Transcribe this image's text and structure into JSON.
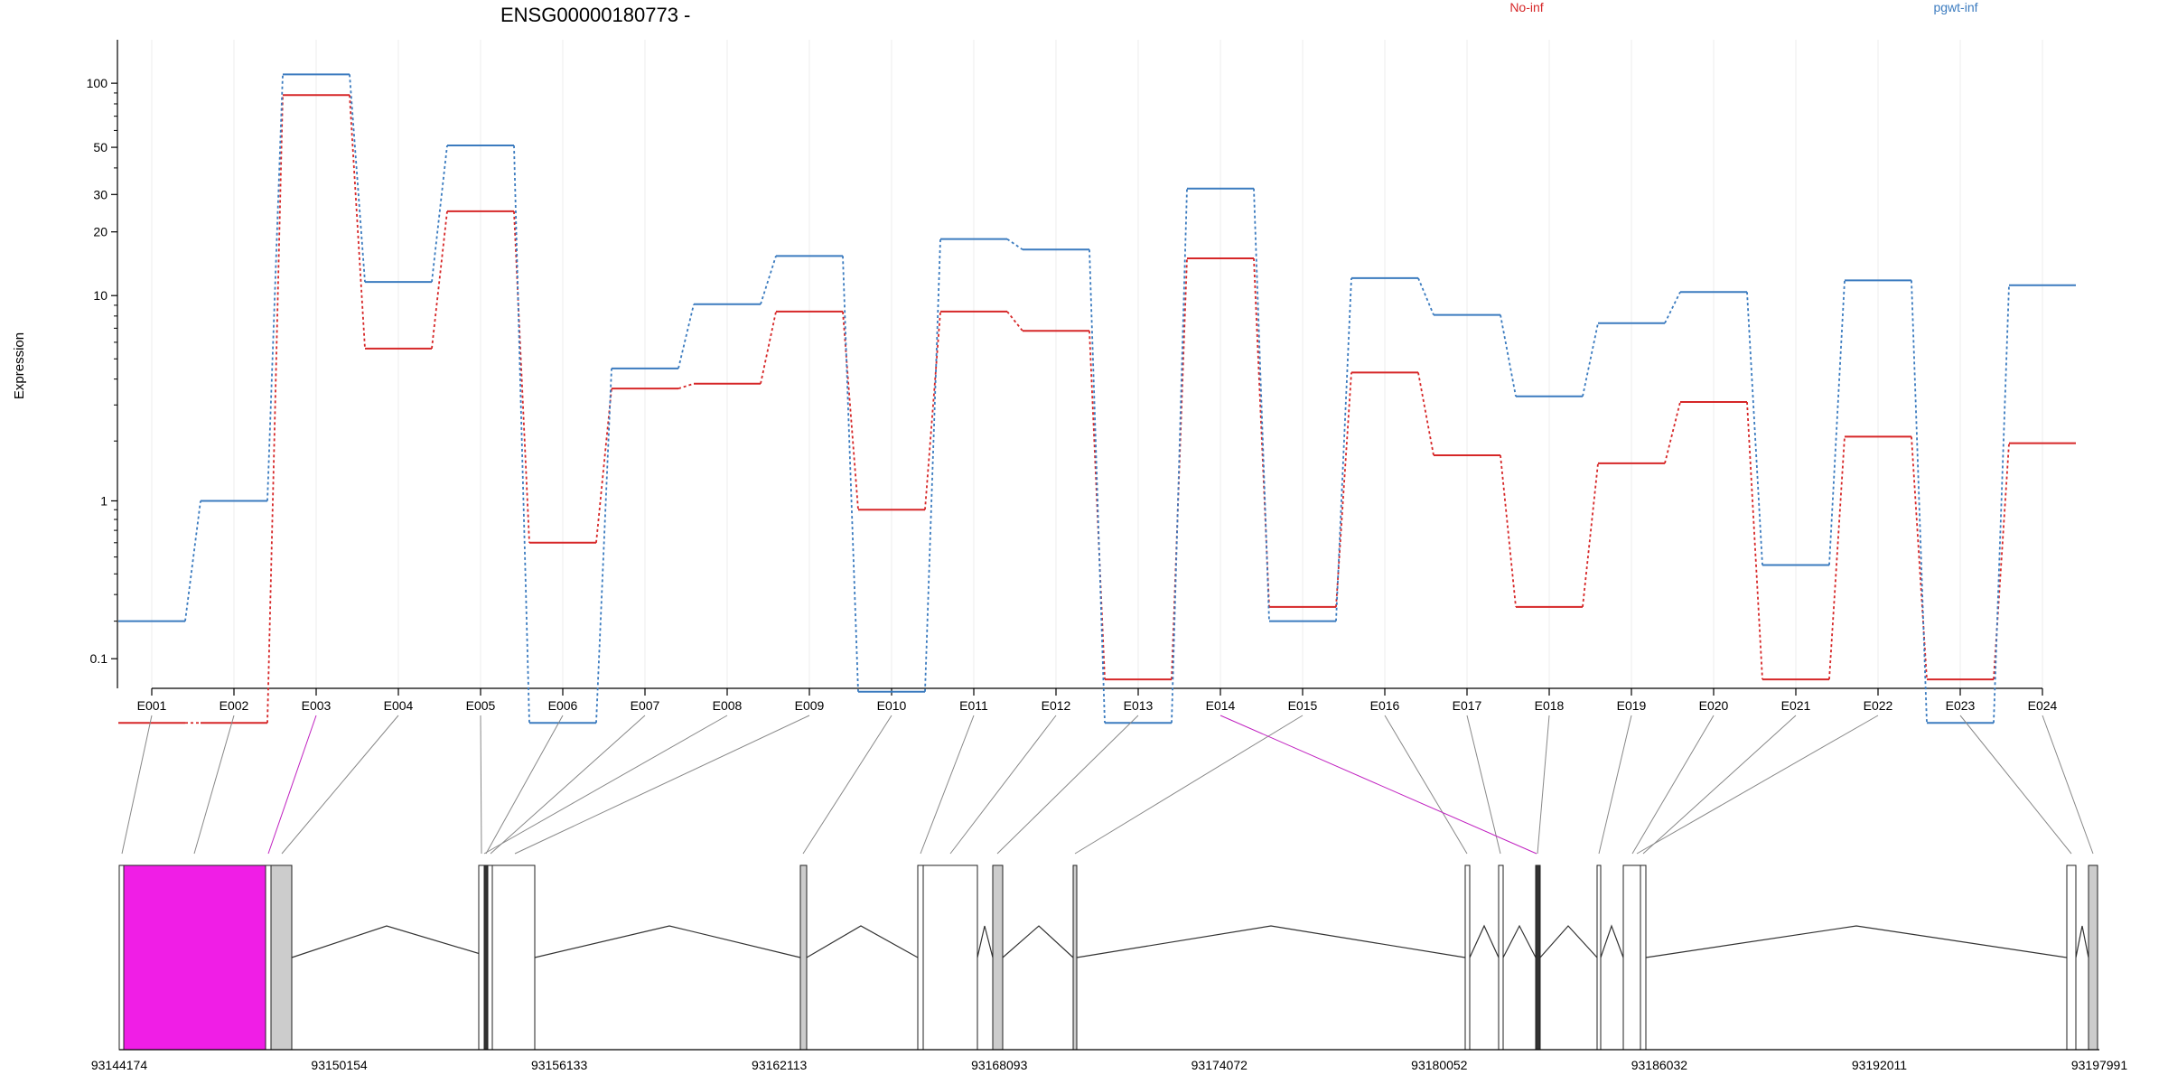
{
  "chart_data": {
    "type": "line",
    "title": "ENSG00000180773 -",
    "ylabel": "Expression",
    "yscale": "log (pseudo, +0.1)",
    "ylim": [
      0.08,
      160
    ],
    "y_ticks": [
      {
        "value": 100,
        "label": "100"
      },
      {
        "value": 50,
        "label": "50"
      },
      {
        "value": 30,
        "label": "30"
      },
      {
        "value": 20,
        "label": "20"
      },
      {
        "value": 10,
        "label": "10"
      },
      {
        "value": 1,
        "label": "1"
      },
      {
        "value": 0.1,
        "label": "0.1"
      }
    ],
    "categories": [
      "E001",
      "E002",
      "E003",
      "E004",
      "E005",
      "E006",
      "E007",
      "E008",
      "E009",
      "E010",
      "E011",
      "E012",
      "E013",
      "E014",
      "E015",
      "E016",
      "E017",
      "E018",
      "E019",
      "E020",
      "E021",
      "E022",
      "E023",
      "E024"
    ],
    "legend": {
      "placement": "top-right"
    },
    "series": [
      {
        "name": "No-inf",
        "color": "#d62728",
        "values": [
          0,
          0,
          88,
          5.6,
          25,
          0.6,
          3.6,
          3.8,
          8.4,
          0.9,
          8.4,
          6.8,
          0.06,
          15,
          0.25,
          4.3,
          1.7,
          0.25,
          1.55,
          3.1,
          0.06,
          2.1,
          0.06,
          1.95
        ]
      },
      {
        "name": "pgwt-inf",
        "color": "#3b7bbf",
        "values": [
          0.2,
          1.0,
          110,
          11.6,
          51,
          0,
          4.5,
          9.1,
          15.4,
          0.04,
          18.5,
          16.5,
          0,
          32,
          0.2,
          12.1,
          8.1,
          3.3,
          7.4,
          10.4,
          0.45,
          11.8,
          0,
          11.2
        ]
      }
    ],
    "highlight_exon": {
      "name": "E003",
      "color": "#f01ee6"
    },
    "gene_model": {
      "coordinate_ticks": [
        "93144174",
        "93150154",
        "93156133",
        "93162113",
        "93168093",
        "93174072",
        "93180052",
        "93186032",
        "93192011",
        "93197991"
      ]
    }
  }
}
